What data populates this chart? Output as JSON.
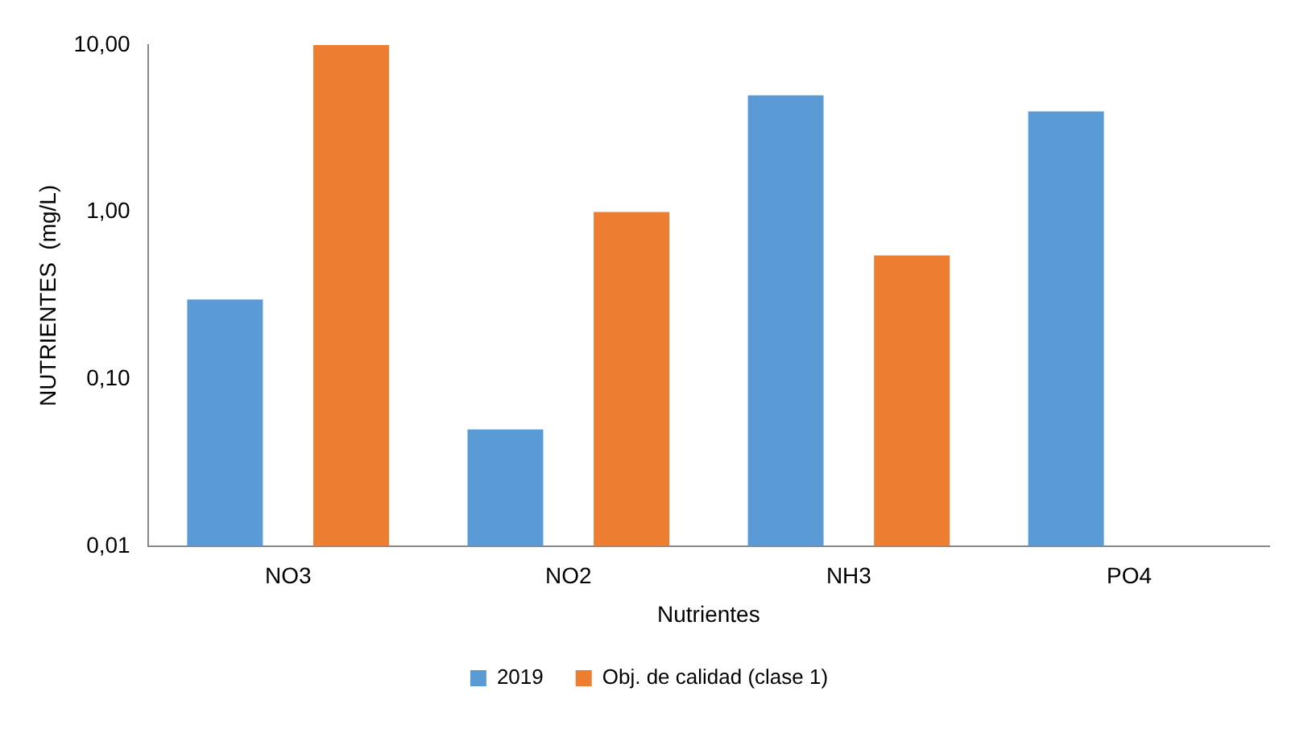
{
  "chart_data": {
    "type": "bar",
    "xlabel": "Nutrientes",
    "ylabel": "NUTRIENTES  (mg/L)",
    "categories": [
      "NO3",
      "NO2",
      "NH3",
      "PO4"
    ],
    "series": [
      {
        "name": "2019",
        "color": "#5b9bd5",
        "values": [
          0.3,
          0.05,
          5,
          4
        ]
      },
      {
        "name": "Obj. de calidad (clase 1)",
        "color": "#ed7d31",
        "values": [
          10,
          1,
          0.55,
          null
        ]
      }
    ],
    "log": "y",
    "ylim": [
      0.01,
      10
    ],
    "yticks": [
      {
        "value": 0.01,
        "label": "0,01"
      },
      {
        "value": 0.1,
        "label": "0,10"
      },
      {
        "value": 1,
        "label": "1,00"
      },
      {
        "value": 10,
        "label": "10,00"
      }
    ],
    "grid": false,
    "legend": "bottom"
  }
}
